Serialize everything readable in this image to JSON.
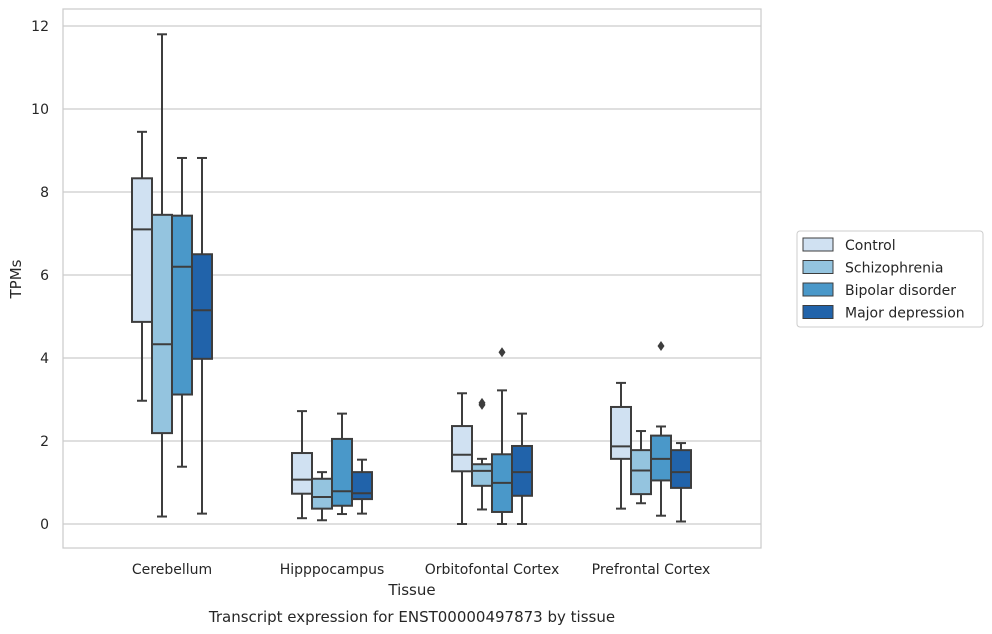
{
  "caption": "Transcript expression for ENST00000497873 by tissue",
  "chart_data": {
    "type": "box",
    "xlabel": "Tissue",
    "ylabel": "TPMs",
    "ylim": [
      -0.55,
      12.4
    ],
    "yticks": [
      0,
      2,
      4,
      6,
      8,
      10,
      12
    ],
    "grid": "horizontal",
    "legend_position": "right",
    "categories": [
      "Cerebellum",
      "Hipppocampus",
      "Orbitofontal Cortex",
      "Prefrontal Cortex"
    ],
    "series": [
      {
        "name": "Control",
        "color": "#d0e1f2",
        "boxes": [
          {
            "min": 2.97,
            "q1": 4.87,
            "median": 7.1,
            "q3": 8.33,
            "max": 9.45,
            "outliers": []
          },
          {
            "min": 0.14,
            "q1": 0.73,
            "median": 1.07,
            "q3": 1.71,
            "max": 2.72,
            "outliers": []
          },
          {
            "min": 0.0,
            "q1": 1.27,
            "median": 1.67,
            "q3": 2.36,
            "max": 3.15,
            "outliers": []
          },
          {
            "min": 0.37,
            "q1": 1.57,
            "median": 1.87,
            "q3": 2.82,
            "max": 3.4,
            "outliers": []
          }
        ]
      },
      {
        "name": "Schizophrenia",
        "color": "#94c4df",
        "boxes": [
          {
            "min": 0.18,
            "q1": 2.19,
            "median": 4.33,
            "q3": 7.45,
            "max": 11.8,
            "outliers": []
          },
          {
            "min": 0.09,
            "q1": 0.37,
            "median": 0.65,
            "q3": 1.09,
            "max": 1.25,
            "outliers": []
          },
          {
            "min": 0.35,
            "q1": 0.92,
            "median": 1.28,
            "q3": 1.44,
            "max": 1.57,
            "outliers": [
              2.92,
              2.87
            ]
          },
          {
            "min": 0.5,
            "q1": 0.72,
            "median": 1.29,
            "q3": 1.78,
            "max": 2.24,
            "outliers": []
          }
        ]
      },
      {
        "name": "Bipolar disorder",
        "color": "#4a98c9",
        "boxes": [
          {
            "min": 1.38,
            "q1": 3.12,
            "median": 6.2,
            "q3": 7.43,
            "max": 8.82,
            "outliers": []
          },
          {
            "min": 0.24,
            "q1": 0.44,
            "median": 0.79,
            "q3": 2.05,
            "max": 2.66,
            "outliers": []
          },
          {
            "min": 0.0,
            "q1": 0.29,
            "median": 0.99,
            "q3": 1.68,
            "max": 3.22,
            "outliers": [
              4.14
            ]
          },
          {
            "min": 0.2,
            "q1": 1.05,
            "median": 1.57,
            "q3": 2.13,
            "max": 2.35,
            "outliers": [
              4.29
            ]
          }
        ]
      },
      {
        "name": "Major depression",
        "color": "#2163aa",
        "boxes": [
          {
            "min": 0.25,
            "q1": 3.98,
            "median": 5.15,
            "q3": 6.5,
            "max": 8.82,
            "outliers": []
          },
          {
            "min": 0.25,
            "q1": 0.6,
            "median": 0.74,
            "q3": 1.25,
            "max": 1.55,
            "outliers": []
          },
          {
            "min": 0.0,
            "q1": 0.68,
            "median": 1.25,
            "q3": 1.88,
            "max": 2.66,
            "outliers": []
          },
          {
            "min": 0.06,
            "q1": 0.87,
            "median": 1.25,
            "q3": 1.78,
            "max": 1.95,
            "outliers": []
          }
        ]
      }
    ]
  }
}
